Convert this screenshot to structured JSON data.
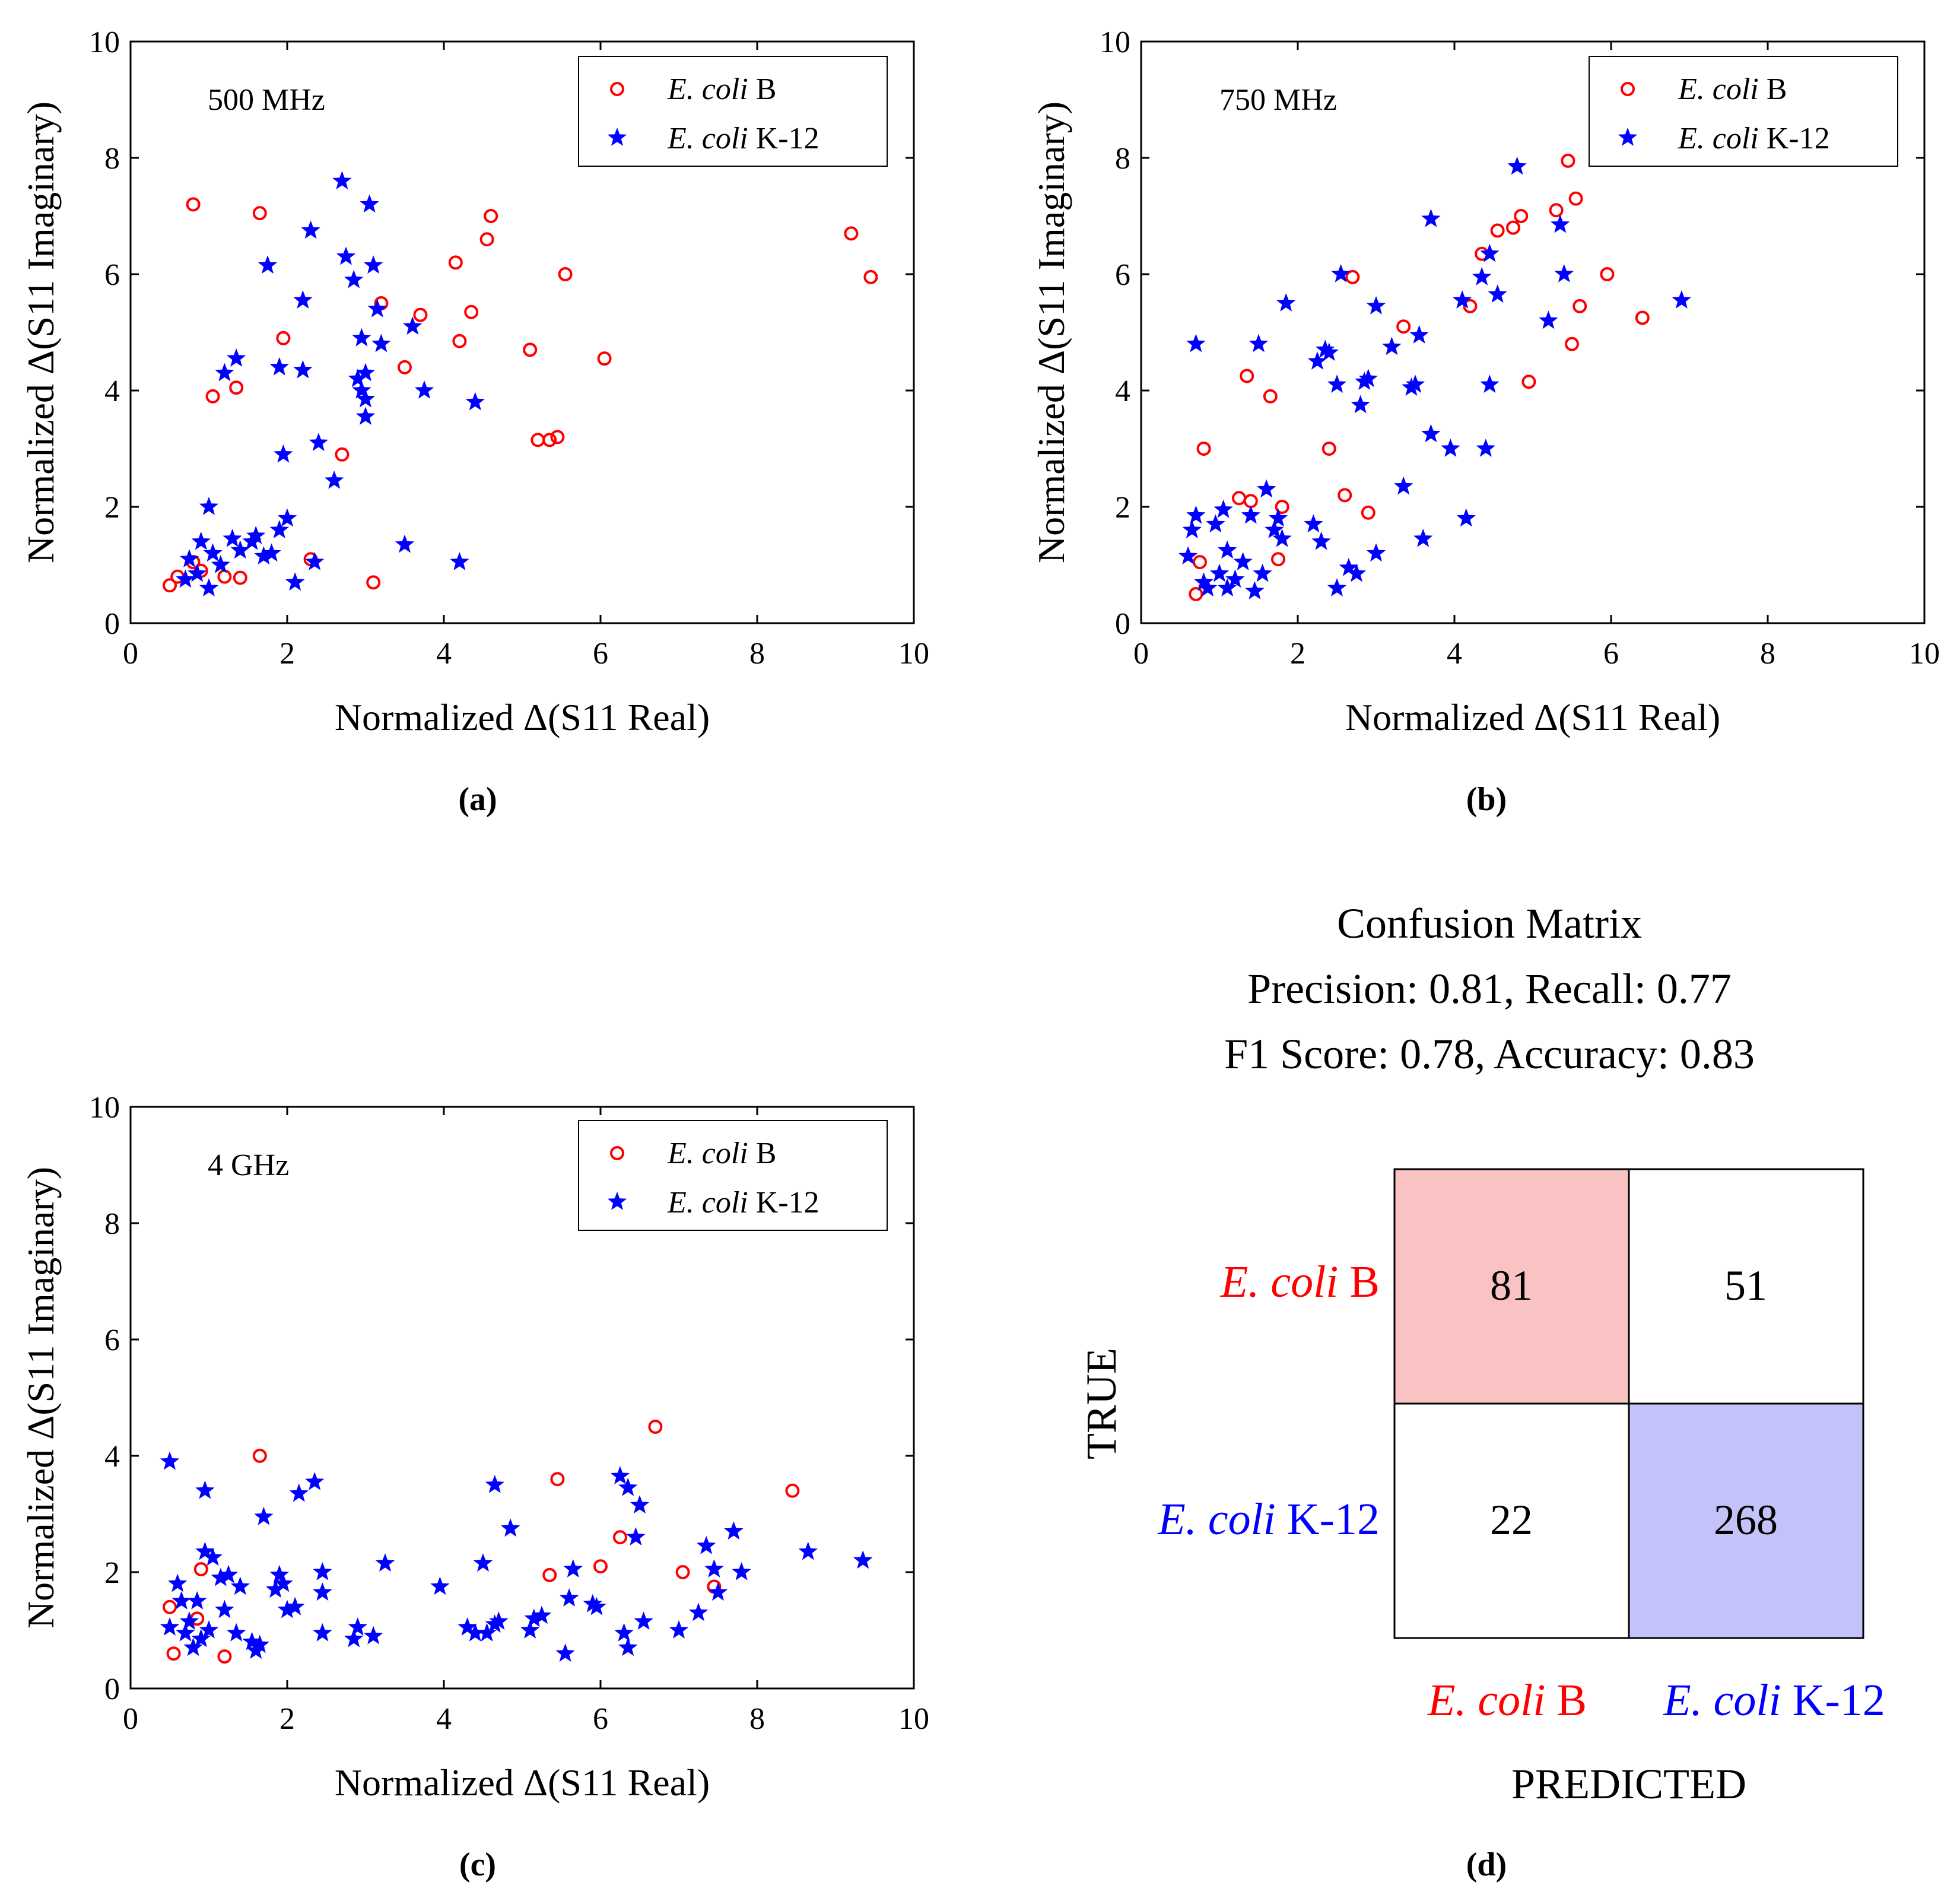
{
  "colors": {
    "series_b": "#ff0000",
    "series_k12": "#0000ff",
    "cm_tp_fill": "#f9c3c3",
    "cm_tn_fill": "#c3c3f9"
  },
  "chart_data": [
    {
      "type": "scatter",
      "panel_label": "(a)",
      "annotation": "500 MHz",
      "xlabel": "Normalized Δ(S11 Real)",
      "ylabel": "Normalized Δ(S11 Imaginary)",
      "xlim": [
        0,
        10
      ],
      "ylim": [
        0,
        10
      ],
      "xticks": [
        "0",
        "2",
        "4",
        "6",
        "8",
        "10"
      ],
      "yticks": [
        "0",
        "2",
        "4",
        "6",
        "8",
        "10"
      ],
      "legend_position": "top-right",
      "series": [
        {
          "name_italic": "E. coli",
          "name_rest": " B",
          "marker": "circle",
          "color": "#ff0000",
          "points": [
            [
              0.5,
              0.65
            ],
            [
              0.6,
              0.8
            ],
            [
              0.8,
              1.05
            ],
            [
              0.9,
              0.9
            ],
            [
              1.2,
              0.8
            ],
            [
              1.4,
              0.78
            ],
            [
              1.05,
              3.9
            ],
            [
              1.35,
              4.05
            ],
            [
              0.8,
              7.2
            ],
            [
              1.65,
              7.05
            ],
            [
              1.95,
              4.9
            ],
            [
              2.3,
              1.1
            ],
            [
              2.7,
              2.9
            ],
            [
              3.1,
              0.7
            ],
            [
              3.2,
              5.5
            ],
            [
              3.5,
              4.4
            ],
            [
              3.7,
              5.3
            ],
            [
              4.15,
              6.2
            ],
            [
              4.2,
              4.85
            ],
            [
              4.35,
              5.35
            ],
            [
              4.55,
              6.6
            ],
            [
              4.6,
              7.0
            ],
            [
              5.1,
              4.7
            ],
            [
              5.2,
              3.15
            ],
            [
              5.35,
              3.15
            ],
            [
              5.45,
              3.2
            ],
            [
              5.55,
              6.0
            ],
            [
              6.05,
              4.55
            ],
            [
              9.2,
              6.7
            ],
            [
              9.45,
              5.95
            ]
          ]
        },
        {
          "name_italic": "E. coli",
          "name_rest": " K-12",
          "marker": "star",
          "color": "#0000ff",
          "points": [
            [
              0.7,
              0.75
            ],
            [
              0.75,
              1.1
            ],
            [
              0.85,
              0.85
            ],
            [
              0.9,
              1.4
            ],
            [
              1.0,
              0.6
            ],
            [
              1.0,
              2.0
            ],
            [
              1.05,
              1.2
            ],
            [
              1.15,
              1.0
            ],
            [
              1.2,
              4.3
            ],
            [
              1.3,
              1.45
            ],
            [
              1.35,
              4.55
            ],
            [
              1.4,
              1.25
            ],
            [
              1.55,
              1.4
            ],
            [
              1.6,
              1.5
            ],
            [
              1.7,
              1.15
            ],
            [
              1.75,
              6.15
            ],
            [
              1.8,
              1.2
            ],
            [
              1.9,
              4.4
            ],
            [
              1.9,
              1.6
            ],
            [
              1.95,
              2.9
            ],
            [
              2.0,
              1.8
            ],
            [
              2.1,
              0.7
            ],
            [
              2.2,
              4.35
            ],
            [
              2.2,
              5.55
            ],
            [
              2.3,
              6.75
            ],
            [
              2.35,
              1.05
            ],
            [
              2.4,
              3.1
            ],
            [
              2.6,
              2.45
            ],
            [
              2.7,
              7.6
            ],
            [
              2.75,
              6.3
            ],
            [
              2.85,
              5.9
            ],
            [
              2.9,
              4.2
            ],
            [
              2.95,
              4.9
            ],
            [
              2.95,
              4.0
            ],
            [
              3.0,
              3.85
            ],
            [
              3.0,
              3.55
            ],
            [
              3.0,
              4.3
            ],
            [
              3.05,
              7.2
            ],
            [
              3.1,
              6.15
            ],
            [
              3.15,
              5.4
            ],
            [
              3.2,
              4.8
            ],
            [
              3.5,
              1.35
            ],
            [
              3.6,
              5.1
            ],
            [
              3.75,
              4.0
            ],
            [
              4.2,
              1.05
            ],
            [
              4.4,
              3.8
            ]
          ]
        }
      ]
    },
    {
      "type": "scatter",
      "panel_label": "(b)",
      "annotation": "750 MHz",
      "xlabel": "Normalized Δ(S11 Real)",
      "ylabel": "Normalized Δ(S11 Imaginary)",
      "xlim": [
        0,
        10
      ],
      "ylim": [
        0,
        10
      ],
      "xticks": [
        "0",
        "2",
        "4",
        "6",
        "8",
        "10"
      ],
      "yticks": [
        "0",
        "2",
        "4",
        "6",
        "8",
        "10"
      ],
      "legend_position": "top-right",
      "series": [
        {
          "name_italic": "E. coli",
          "name_rest": " B",
          "marker": "circle",
          "color": "#ff0000",
          "points": [
            [
              0.7,
              0.5
            ],
            [
              0.75,
              1.05
            ],
            [
              0.8,
              3.0
            ],
            [
              1.25,
              2.15
            ],
            [
              1.4,
              2.1
            ],
            [
              1.35,
              4.25
            ],
            [
              1.65,
              3.9
            ],
            [
              1.75,
              1.1
            ],
            [
              1.8,
              2.0
            ],
            [
              2.4,
              3.0
            ],
            [
              2.6,
              2.2
            ],
            [
              2.7,
              5.95
            ],
            [
              2.9,
              1.9
            ],
            [
              3.35,
              5.1
            ],
            [
              4.2,
              5.45
            ],
            [
              4.35,
              6.35
            ],
            [
              4.55,
              6.75
            ],
            [
              4.75,
              6.8
            ],
            [
              4.85,
              7.0
            ],
            [
              4.95,
              4.15
            ],
            [
              5.3,
              7.1
            ],
            [
              5.45,
              7.95
            ],
            [
              5.5,
              4.8
            ],
            [
              5.55,
              7.3
            ],
            [
              5.6,
              5.45
            ],
            [
              5.95,
              6.0
            ],
            [
              6.4,
              5.25
            ]
          ]
        },
        {
          "name_italic": "E. coli",
          "name_rest": " K-12",
          "marker": "star",
          "color": "#0000ff",
          "points": [
            [
              0.6,
              1.15
            ],
            [
              0.65,
              1.6
            ],
            [
              0.7,
              1.85
            ],
            [
              0.7,
              4.8
            ],
            [
              0.8,
              0.7
            ],
            [
              0.85,
              0.6
            ],
            [
              0.95,
              1.7
            ],
            [
              1.0,
              0.85
            ],
            [
              1.05,
              1.95
            ],
            [
              1.1,
              1.25
            ],
            [
              1.1,
              0.6
            ],
            [
              1.2,
              0.75
            ],
            [
              1.3,
              1.05
            ],
            [
              1.4,
              1.85
            ],
            [
              1.45,
              0.55
            ],
            [
              1.5,
              4.8
            ],
            [
              1.55,
              0.85
            ],
            [
              1.6,
              2.3
            ],
            [
              1.7,
              1.6
            ],
            [
              1.75,
              1.8
            ],
            [
              1.8,
              1.45
            ],
            [
              1.85,
              5.5
            ],
            [
              2.2,
              1.7
            ],
            [
              2.25,
              4.5
            ],
            [
              2.3,
              1.4
            ],
            [
              2.35,
              4.7
            ],
            [
              2.4,
              4.65
            ],
            [
              2.5,
              0.6
            ],
            [
              2.5,
              4.1
            ],
            [
              2.55,
              6.0
            ],
            [
              2.65,
              0.95
            ],
            [
              2.75,
              0.85
            ],
            [
              2.8,
              3.75
            ],
            [
              2.85,
              4.15
            ],
            [
              2.9,
              4.2
            ],
            [
              3.0,
              1.2
            ],
            [
              3.0,
              5.45
            ],
            [
              3.2,
              4.75
            ],
            [
              3.35,
              2.35
            ],
            [
              3.45,
              4.05
            ],
            [
              3.5,
              4.1
            ],
            [
              3.55,
              4.95
            ],
            [
              3.6,
              1.45
            ],
            [
              3.7,
              6.95
            ],
            [
              3.7,
              3.25
            ],
            [
              3.95,
              3.0
            ],
            [
              4.1,
              5.55
            ],
            [
              4.15,
              1.8
            ],
            [
              4.35,
              5.95
            ],
            [
              4.4,
              3.0
            ],
            [
              4.45,
              6.35
            ],
            [
              4.45,
              4.1
            ],
            [
              4.55,
              5.65
            ],
            [
              4.8,
              7.85
            ],
            [
              5.2,
              5.2
            ],
            [
              5.35,
              6.85
            ],
            [
              5.4,
              6.0
            ],
            [
              6.9,
              5.55
            ]
          ]
        }
      ]
    },
    {
      "type": "scatter",
      "panel_label": "(c)",
      "annotation": "4 GHz",
      "xlabel": "Normalized Δ(S11 Real)",
      "ylabel": "Normalized Δ(S11 Imaginary)",
      "xlim": [
        0,
        10
      ],
      "ylim": [
        0,
        10
      ],
      "xticks": [
        "0",
        "2",
        "4",
        "6",
        "8",
        "10"
      ],
      "yticks": [
        "0",
        "2",
        "4",
        "6",
        "8",
        "10"
      ],
      "legend_position": "top-right",
      "series": [
        {
          "name_italic": "E. coli",
          "name_rest": " B",
          "marker": "circle",
          "color": "#ff0000",
          "points": [
            [
              0.5,
              1.4
            ],
            [
              0.55,
              0.6
            ],
            [
              0.85,
              1.2
            ],
            [
              0.9,
              2.05
            ],
            [
              1.2,
              0.55
            ],
            [
              1.65,
              4.0
            ],
            [
              5.35,
              1.95
            ],
            [
              5.45,
              3.6
            ],
            [
              6.0,
              2.1
            ],
            [
              6.25,
              2.6
            ],
            [
              6.7,
              4.5
            ],
            [
              7.05,
              2.0
            ],
            [
              7.45,
              1.75
            ],
            [
              8.45,
              3.4
            ]
          ]
        },
        {
          "name_italic": "E. coli",
          "name_rest": " K-12",
          "marker": "star",
          "color": "#0000ff",
          "points": [
            [
              0.5,
              3.9
            ],
            [
              0.5,
              1.05
            ],
            [
              0.6,
              1.8
            ],
            [
              0.65,
              1.5
            ],
            [
              0.7,
              0.95
            ],
            [
              0.75,
              1.15
            ],
            [
              0.8,
              0.7
            ],
            [
              0.85,
              1.5
            ],
            [
              0.9,
              0.85
            ],
            [
              0.95,
              2.35
            ],
            [
              0.95,
              3.4
            ],
            [
              1.0,
              1.0
            ],
            [
              1.05,
              2.25
            ],
            [
              1.15,
              1.9
            ],
            [
              1.2,
              1.35
            ],
            [
              1.25,
              1.95
            ],
            [
              1.35,
              0.95
            ],
            [
              1.4,
              1.75
            ],
            [
              1.55,
              0.8
            ],
            [
              1.6,
              0.65
            ],
            [
              1.65,
              0.75
            ],
            [
              1.7,
              2.95
            ],
            [
              1.85,
              1.7
            ],
            [
              1.9,
              1.95
            ],
            [
              1.95,
              1.8
            ],
            [
              2.0,
              1.35
            ],
            [
              2.1,
              1.4
            ],
            [
              2.15,
              3.35
            ],
            [
              2.35,
              3.55
            ],
            [
              2.45,
              2.0
            ],
            [
              2.45,
              1.65
            ],
            [
              2.45,
              0.95
            ],
            [
              2.85,
              0.85
            ],
            [
              2.9,
              1.05
            ],
            [
              3.1,
              0.9
            ],
            [
              3.25,
              2.15
            ],
            [
              3.95,
              1.75
            ],
            [
              4.3,
              1.05
            ],
            [
              4.4,
              0.95
            ],
            [
              4.5,
              2.15
            ],
            [
              4.55,
              0.95
            ],
            [
              4.65,
              1.1
            ],
            [
              4.65,
              3.5
            ],
            [
              4.7,
              1.15
            ],
            [
              4.85,
              2.75
            ],
            [
              5.1,
              1.0
            ],
            [
              5.15,
              1.2
            ],
            [
              5.25,
              1.25
            ],
            [
              5.55,
              0.6
            ],
            [
              5.6,
              1.55
            ],
            [
              5.65,
              2.05
            ],
            [
              5.9,
              1.45
            ],
            [
              5.95,
              1.4
            ],
            [
              6.25,
              3.65
            ],
            [
              6.3,
              0.95
            ],
            [
              6.35,
              0.7
            ],
            [
              6.35,
              3.45
            ],
            [
              6.45,
              2.6
            ],
            [
              6.5,
              3.15
            ],
            [
              6.55,
              1.15
            ],
            [
              7.0,
              1.0
            ],
            [
              7.25,
              1.3
            ],
            [
              7.35,
              2.45
            ],
            [
              7.45,
              2.05
            ],
            [
              7.5,
              1.65
            ],
            [
              7.7,
              2.7
            ],
            [
              7.8,
              2.0
            ],
            [
              8.65,
              2.35
            ],
            [
              9.35,
              2.2
            ]
          ]
        }
      ]
    },
    {
      "type": "heatmap",
      "panel_label": "(d)",
      "title_lines": [
        "Confusion Matrix",
        "Precision: 0.81, Recall: 0.77",
        "F1 Score: 0.78, Accuracy: 0.83"
      ],
      "ylabel": "TRUE",
      "xlabel": "PREDICTED",
      "classes": [
        {
          "italic": "E. coli",
          "rest": " B",
          "color": "#ff0000"
        },
        {
          "italic": "E. coli",
          "rest": " K-12",
          "color": "#0000ff"
        }
      ],
      "matrix": [
        [
          81,
          51
        ],
        [
          22,
          268
        ]
      ]
    }
  ]
}
